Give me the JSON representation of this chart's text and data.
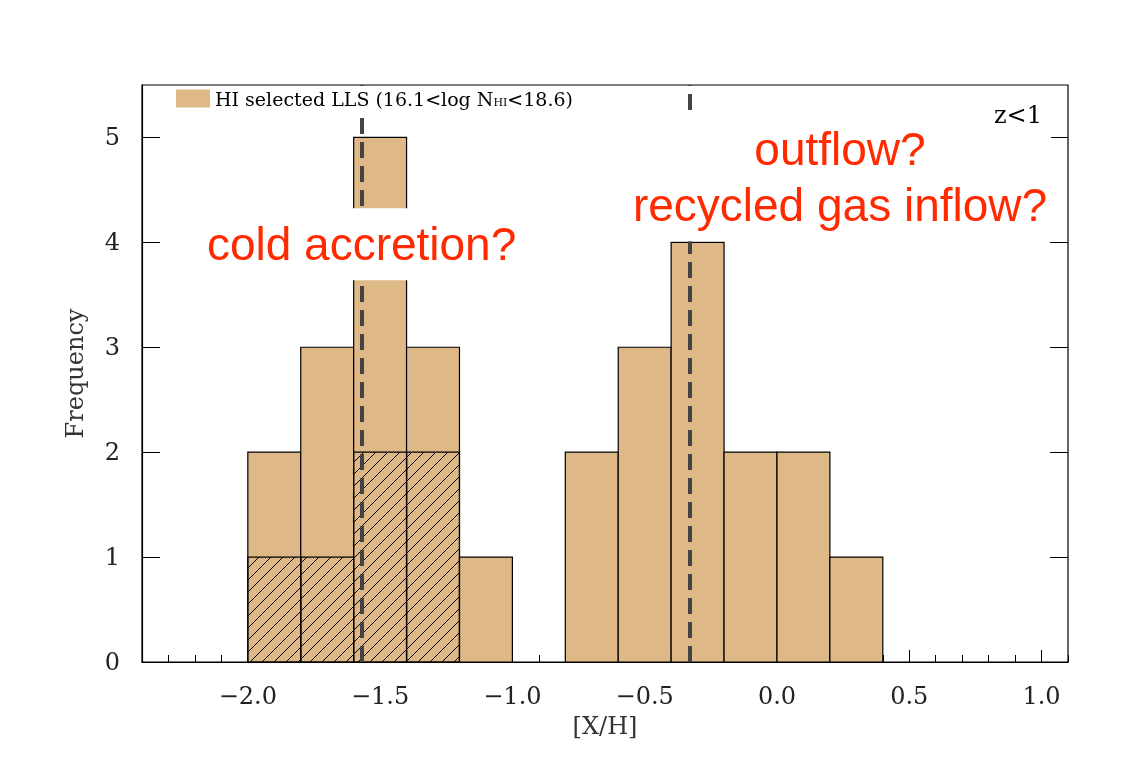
{
  "chart_data": {
    "type": "histogram",
    "xlabel": "[X/H]",
    "ylabel": "Frequency",
    "bins": [
      -2.0,
      -1.8,
      -1.6,
      -1.4,
      -1.2,
      -1.0,
      -0.8,
      -0.6,
      -0.4,
      -0.2,
      0.0,
      0.2,
      0.4
    ],
    "series": [
      {
        "name": "HI selected LLS (16.1<log N$_{HI}$<18.6)",
        "color": "#deb887",
        "values": [
          2,
          3,
          5,
          3,
          1,
          0,
          2,
          3,
          4,
          2,
          2,
          1
        ]
      },
      {
        "color": "#000000",
        "values": [
          1,
          1,
          2,
          2,
          null,
          null,
          null,
          null,
          null,
          null,
          null,
          null
        ]
      }
    ],
    "xlim": [
      -2.4,
      1.1
    ],
    "ylim": [
      0,
      5.5
    ],
    "xticks": [
      {
        "value": -2.4,
        "label": null
      },
      {
        "value": -2.3,
        "label": null
      },
      {
        "value": -2.2,
        "label": null
      },
      {
        "value": -2.1,
        "label": null
      },
      {
        "value": -2.0,
        "label": "−2.0"
      },
      {
        "value": -1.9,
        "label": null
      },
      {
        "value": -1.8,
        "label": null
      },
      {
        "value": -1.7,
        "label": null
      },
      {
        "value": -1.6,
        "label": null
      },
      {
        "value": -1.5,
        "label": "−1.5"
      },
      {
        "value": -1.4,
        "label": null
      },
      {
        "value": -1.3,
        "label": null
      },
      {
        "value": -1.2,
        "label": null
      },
      {
        "value": -1.1,
        "label": null
      },
      {
        "value": -1.0,
        "label": "−1.0"
      },
      {
        "value": -0.9,
        "label": null
      },
      {
        "value": -0.8,
        "label": null
      },
      {
        "value": -0.7,
        "label": null
      },
      {
        "value": -0.6,
        "label": null
      },
      {
        "value": -0.5,
        "label": "−0.5"
      },
      {
        "value": -0.4,
        "label": null
      },
      {
        "value": -0.3,
        "label": null
      },
      {
        "value": -0.2,
        "label": null
      },
      {
        "value": -0.1,
        "label": null
      },
      {
        "value": 0.0,
        "label": "0.0"
      },
      {
        "value": 0.1,
        "label": null
      },
      {
        "value": 0.2,
        "label": null
      },
      {
        "value": 0.3,
        "label": null
      },
      {
        "value": 0.4,
        "label": null
      },
      {
        "value": 0.5,
        "label": "0.5"
      },
      {
        "value": 0.6,
        "label": null
      },
      {
        "value": 0.7,
        "label": null
      },
      {
        "value": 0.8,
        "label": null
      },
      {
        "value": 0.9,
        "label": null
      },
      {
        "value": 1.0,
        "label": "1.0"
      },
      {
        "value": 1.1,
        "label": null
      }
    ],
    "yticks": [
      0,
      1,
      2,
      3,
      4,
      5
    ],
    "ref_lines": [
      {
        "axis": "x",
        "value": -1.57,
        "label": "cold accretion?",
        "color": "#444444",
        "line_style": "dashed"
      },
      {
        "axis": "x",
        "value": -0.33,
        "label": "outflow?\nrecycled gas inflow?",
        "color": "#444444",
        "line_style": "dashed"
      }
    ],
    "annotations": [
      "z<1"
    ],
    "grid": false,
    "legend": "top left"
  }
}
